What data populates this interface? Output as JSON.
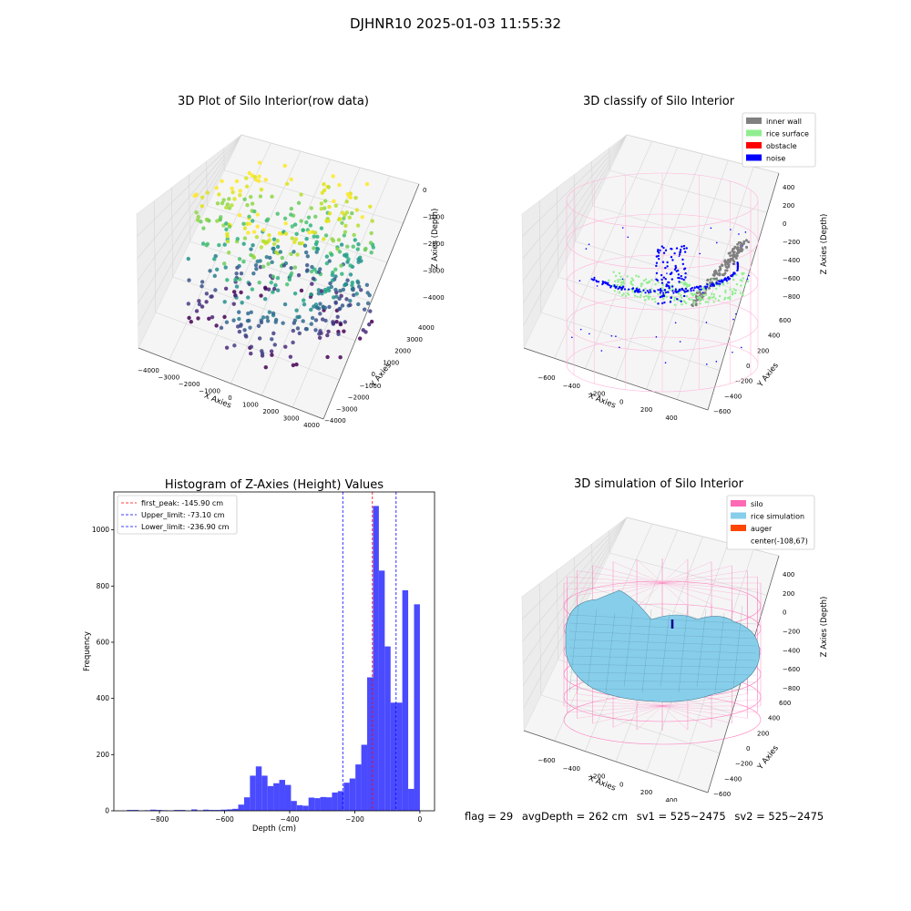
{
  "suptitle": "DJHNR10 2025-01-03 11:55:32",
  "colors": {
    "hist_bar": "#4a4aff",
    "first_peak": "#ff0000",
    "limits": "#0000ff",
    "inner_wall": "#808080",
    "rice_surface": "#90ee90",
    "obstacle": "#ff0000",
    "noise": "#0000ff",
    "silo": "#ff69b4",
    "rice_simulation": "#87ceeb",
    "auger": "#ff4500"
  },
  "panels": {
    "raw": {
      "title": "3D Plot of Silo Interior(row data)",
      "xlabel": "X Axies",
      "ylabel": "Y Axies",
      "zlabel": "Z Axies (Depth)",
      "xticks": [
        "−4000",
        "−3000",
        "−2000",
        "−1000",
        "0",
        "1000",
        "2000",
        "3000",
        "4000"
      ],
      "yticks": [
        "−4000",
        "−3000",
        "−2000",
        "−1000",
        "0",
        "1000",
        "2000",
        "3000",
        "4000"
      ],
      "zticks": [
        "0",
        "−1000",
        "−2000",
        "−3000",
        "−4000"
      ]
    },
    "classify": {
      "title": "3D classify of Silo Interior",
      "xlabel": "X Axies",
      "ylabel": "Y Axies",
      "zlabel": "Z Axies (Depth)",
      "xticks": [
        "−600",
        "−400",
        "−200",
        "0",
        "200",
        "400"
      ],
      "yticks": [
        "−600",
        "−400",
        "−200",
        "0",
        "200",
        "400",
        "600"
      ],
      "zticks": [
        "400",
        "200",
        "0",
        "−200",
        "−400",
        "−600",
        "−800"
      ],
      "legend": [
        "inner wall",
        "rice surface",
        "obstacle",
        "noise"
      ]
    },
    "simulation": {
      "title": "3D simulation of Silo Interior",
      "xlabel": "X Axies",
      "ylabel": "Y Axies",
      "zlabel": "Z Axies (Depth)",
      "xticks": [
        "−600",
        "−400",
        "−200",
        "0",
        "200",
        "400"
      ],
      "yticks": [
        "−600",
        "−400",
        "−200",
        "0",
        "200",
        "400",
        "600"
      ],
      "zticks": [
        "400",
        "200",
        "0",
        "−200",
        "−400",
        "−600",
        "−800"
      ],
      "legend": [
        "silo",
        "rice simulation",
        "auger",
        "center(-108,67)"
      ]
    }
  },
  "status_line": {
    "flag": "flag = 29",
    "avg_depth": "avgDepth = 262 cm",
    "sv1": "sv1 = 525~2475",
    "sv2": "sv2 = 525~2475"
  },
  "chart_data": {
    "type": "bar",
    "title": "Histogram of Z-Axies (Height) Values",
    "xlabel": "Depth (cm)",
    "ylabel": "Frequency",
    "xlim": [
      -940,
      45
    ],
    "ylim": [
      0,
      1135
    ],
    "xticks": [
      -800,
      -600,
      -400,
      -200,
      0
    ],
    "yticks": [
      0,
      200,
      400,
      600,
      800,
      1000
    ],
    "bin_width": 18,
    "bin_starts": [
      -900,
      -882,
      -864,
      -846,
      -828,
      -810,
      -792,
      -774,
      -756,
      -738,
      -720,
      -702,
      -684,
      -666,
      -648,
      -630,
      -612,
      -594,
      -576,
      -558,
      -540,
      -522,
      -504,
      -486,
      -468,
      -450,
      -432,
      -414,
      -396,
      -378,
      -360,
      -342,
      -324,
      -306,
      -288,
      -270,
      -252,
      -234,
      -216,
      -198,
      -180,
      -162,
      -144,
      -126,
      -108,
      -90,
      -72,
      -54,
      -36,
      -18
    ],
    "values": [
      3,
      3,
      1,
      2,
      4,
      3,
      2,
      1,
      3,
      3,
      1,
      5,
      2,
      4,
      3,
      3,
      4,
      5,
      7,
      22,
      48,
      125,
      158,
      125,
      88,
      98,
      110,
      92,
      35,
      20,
      18,
      47,
      45,
      49,
      48,
      65,
      70,
      100,
      115,
      165,
      235,
      475,
      1085,
      855,
      585,
      385,
      385,
      785,
      78,
      735
    ],
    "vlines": [
      {
        "label": "first_peak: -145.90 cm",
        "x": -145.9,
        "color": "#ff0000"
      },
      {
        "label": "Upper_limit: -73.10 cm",
        "x": -73.1,
        "color": "#0000ff"
      },
      {
        "label": "Lower_limit: -236.90 cm",
        "x": -236.9,
        "color": "#0000ff"
      }
    ]
  }
}
